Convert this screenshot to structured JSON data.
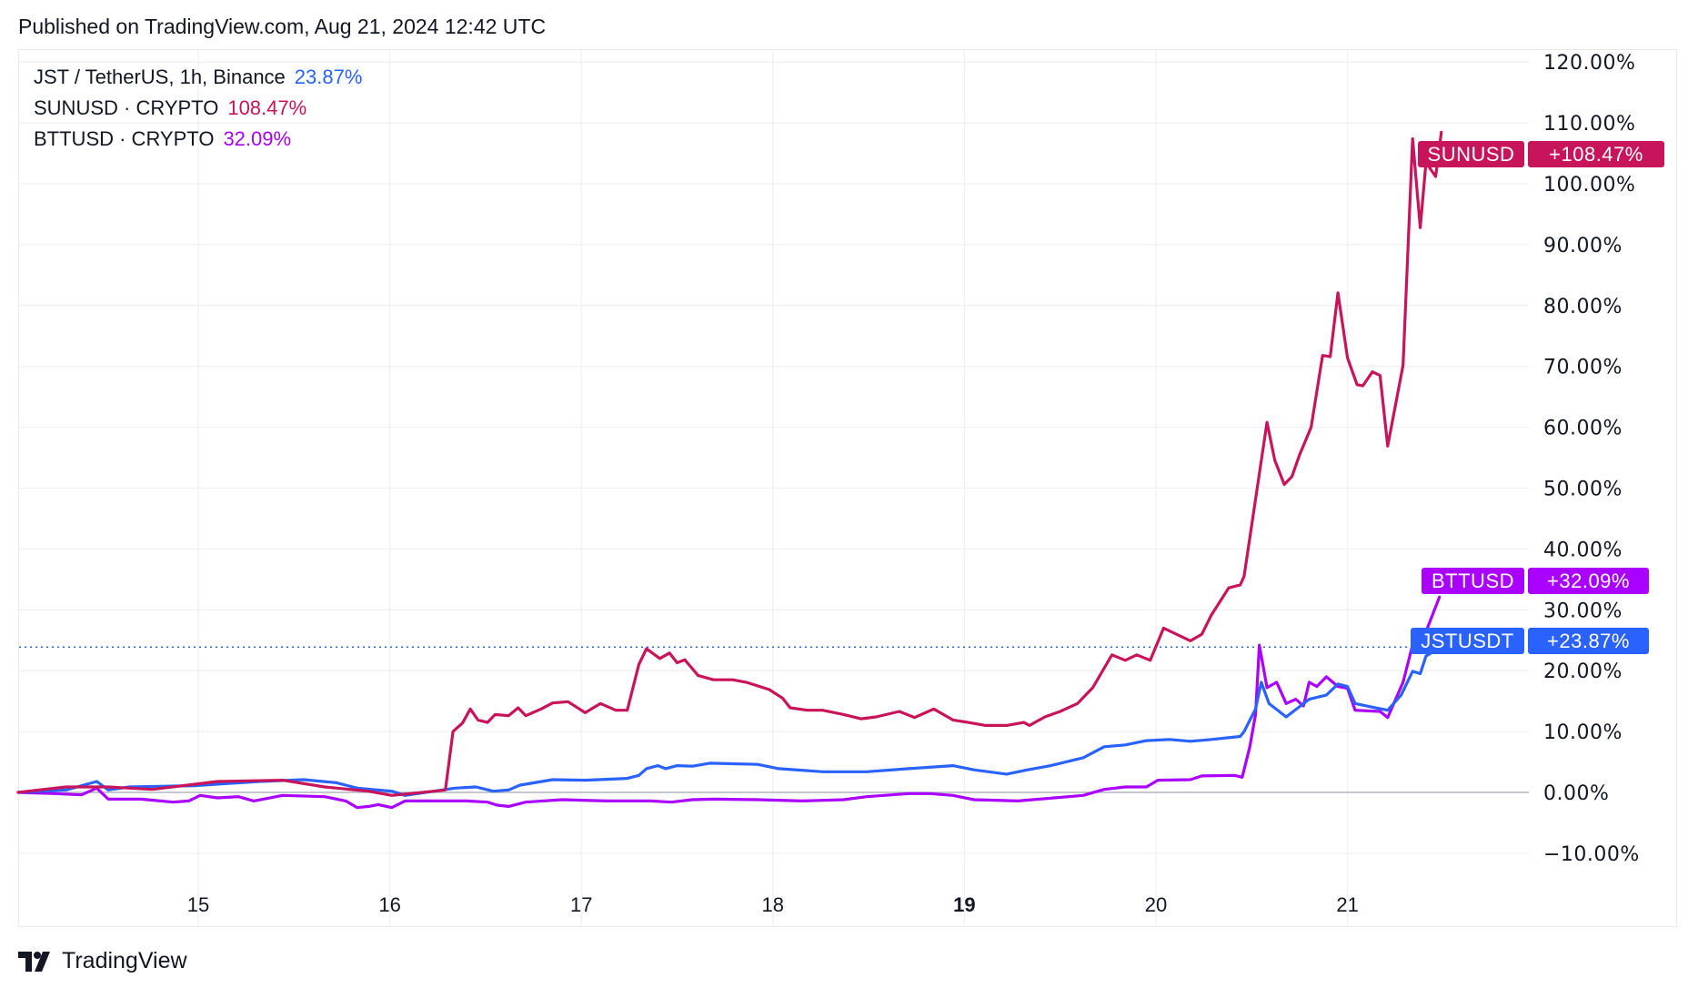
{
  "header": {
    "published": "Published on TradingView.com, Aug 21, 2024 12:42 UTC"
  },
  "legend": [
    {
      "name": "JST / TetherUS, 1h, Binance",
      "value": "23.87%",
      "color": "#2962ff"
    },
    {
      "name": "SUNUSD · CRYPTO",
      "value": "108.47%",
      "color": "#c8145a"
    },
    {
      "name": "BTTUSD · CRYPTO",
      "value": "32.09%",
      "color": "#aa00ff"
    }
  ],
  "tags": [
    {
      "symbol": "SUNUSD",
      "value": "+108.47%",
      "color": "#c8145a"
    },
    {
      "symbol": "BTTUSD",
      "value": "+32.09%",
      "color": "#aa00ff"
    },
    {
      "symbol": "JSTUSDT",
      "value": "+23.87%",
      "color": "#2962ff"
    }
  ],
  "footer": {
    "brand": "TradingView"
  },
  "chart_data": {
    "type": "line",
    "xlabel": "",
    "ylabel": "",
    "x_unit": "day of August 2024",
    "xlim": [
      14.06,
      21.95
    ],
    "ylim": [
      -15,
      122
    ],
    "x_ticks": [
      {
        "v": 15,
        "label": "15"
      },
      {
        "v": 16,
        "label": "16"
      },
      {
        "v": 17,
        "label": "17"
      },
      {
        "v": 18,
        "label": "18"
      },
      {
        "v": 19,
        "label": "19",
        "bold": true
      },
      {
        "v": 20,
        "label": "20"
      },
      {
        "v": 21,
        "label": "21"
      }
    ],
    "y_ticks": [
      {
        "v": 120,
        "label": "120.00%"
      },
      {
        "v": 110,
        "label": "110.00%"
      },
      {
        "v": 100,
        "label": "100.00%"
      },
      {
        "v": 90,
        "label": "90.00%"
      },
      {
        "v": 80,
        "label": "80.00%"
      },
      {
        "v": 70,
        "label": "70.00%"
      },
      {
        "v": 60,
        "label": "60.00%"
      },
      {
        "v": 50,
        "label": "50.00%"
      },
      {
        "v": 40,
        "label": "40.00%"
      },
      {
        "v": 30,
        "label": "30.00%"
      },
      {
        "v": 20,
        "label": "20.00%"
      },
      {
        "v": 10,
        "label": "10.00%"
      },
      {
        "v": 0,
        "label": "0.00%"
      },
      {
        "v": -10,
        "label": "−10.00%"
      }
    ],
    "grid": true,
    "reference_line": {
      "value": 23.87,
      "color": "#2962ff",
      "style": "dotted"
    },
    "zero_line_color": "#b2b5be",
    "series": [
      {
        "name": "SUNUSD",
        "color": "#c8145a",
        "points": [
          [
            14.06,
            0
          ],
          [
            14.31,
            0.9
          ],
          [
            14.53,
            0.9
          ],
          [
            14.76,
            0.5
          ],
          [
            15.1,
            1.8
          ],
          [
            15.44,
            2
          ],
          [
            15.66,
            0.9
          ],
          [
            15.89,
            0.2
          ],
          [
            16.01,
            -0.5
          ],
          [
            16.23,
            0.2
          ],
          [
            16.29,
            0.4
          ],
          [
            16.33,
            10
          ],
          [
            16.38,
            11.4
          ],
          [
            16.42,
            13.7
          ],
          [
            16.46,
            11.9
          ],
          [
            16.51,
            11.5
          ],
          [
            16.55,
            12.8
          ],
          [
            16.62,
            12.6
          ],
          [
            16.67,
            13.9
          ],
          [
            16.71,
            12.6
          ],
          [
            16.79,
            13.7
          ],
          [
            16.85,
            14.7
          ],
          [
            16.93,
            14.9
          ],
          [
            17.02,
            13.1
          ],
          [
            17.1,
            14.6
          ],
          [
            17.18,
            13.5
          ],
          [
            17.24,
            13.5
          ],
          [
            17.3,
            21
          ],
          [
            17.34,
            23.6
          ],
          [
            17.41,
            22
          ],
          [
            17.46,
            22.9
          ],
          [
            17.5,
            21.3
          ],
          [
            17.54,
            21.8
          ],
          [
            17.61,
            19.2
          ],
          [
            17.69,
            18.5
          ],
          [
            17.79,
            18.5
          ],
          [
            17.86,
            18.1
          ],
          [
            17.98,
            16.9
          ],
          [
            18.05,
            15.5
          ],
          [
            18.09,
            13.9
          ],
          [
            18.18,
            13.5
          ],
          [
            18.26,
            13.5
          ],
          [
            18.37,
            12.8
          ],
          [
            18.46,
            12.1
          ],
          [
            18.54,
            12.4
          ],
          [
            18.66,
            13.3
          ],
          [
            18.74,
            12.3
          ],
          [
            18.84,
            13.7
          ],
          [
            18.94,
            11.9
          ],
          [
            19.02,
            11.5
          ],
          [
            19.11,
            11
          ],
          [
            19.22,
            11
          ],
          [
            19.31,
            11.5
          ],
          [
            19.34,
            11
          ],
          [
            19.42,
            12.4
          ],
          [
            19.5,
            13.3
          ],
          [
            19.59,
            14.6
          ],
          [
            19.67,
            17.2
          ],
          [
            19.77,
            22.6
          ],
          [
            19.84,
            21.7
          ],
          [
            19.9,
            22.6
          ],
          [
            19.97,
            21.7
          ],
          [
            20.04,
            27
          ],
          [
            20.12,
            25.8
          ],
          [
            20.18,
            24.9
          ],
          [
            20.24,
            26
          ],
          [
            20.29,
            29.2
          ],
          [
            20.38,
            33.6
          ],
          [
            20.44,
            34.1
          ],
          [
            20.46,
            35.5
          ],
          [
            20.58,
            60.8
          ],
          [
            20.62,
            54.6
          ],
          [
            20.67,
            50.6
          ],
          [
            20.71,
            51.9
          ],
          [
            20.75,
            55.5
          ],
          [
            20.81,
            60
          ],
          [
            20.87,
            71.8
          ],
          [
            20.91,
            71.6
          ],
          [
            20.95,
            82.1
          ],
          [
            21.0,
            71.4
          ],
          [
            21.05,
            67
          ],
          [
            21.08,
            66.8
          ],
          [
            21.13,
            69.1
          ],
          [
            21.17,
            68.5
          ],
          [
            21.21,
            56.9
          ],
          [
            21.29,
            70.2
          ],
          [
            21.34,
            107.4
          ],
          [
            21.38,
            92.8
          ],
          [
            21.41,
            103.5
          ],
          [
            21.46,
            101.2
          ],
          [
            21.49,
            108.47
          ]
        ]
      },
      {
        "name": "JSTUSDT",
        "color": "#2962ff",
        "points": [
          [
            14.06,
            0
          ],
          [
            14.31,
            0.4
          ],
          [
            14.47,
            1.8
          ],
          [
            14.53,
            0.4
          ],
          [
            14.64,
            0.9
          ],
          [
            14.98,
            1.1
          ],
          [
            15.32,
            1.8
          ],
          [
            15.55,
            2.1
          ],
          [
            15.72,
            1.6
          ],
          [
            15.83,
            0.7
          ],
          [
            16.01,
            0.2
          ],
          [
            16.08,
            -0.5
          ],
          [
            16.23,
            0.2
          ],
          [
            16.34,
            0.7
          ],
          [
            16.45,
            0.9
          ],
          [
            16.54,
            0.2
          ],
          [
            16.62,
            0.4
          ],
          [
            16.68,
            1.2
          ],
          [
            16.85,
            2.1
          ],
          [
            17.02,
            2
          ],
          [
            17.24,
            2.3
          ],
          [
            17.3,
            2.8
          ],
          [
            17.34,
            3.9
          ],
          [
            17.4,
            4.4
          ],
          [
            17.44,
            3.9
          ],
          [
            17.5,
            4.4
          ],
          [
            17.58,
            4.3
          ],
          [
            17.67,
            4.8
          ],
          [
            17.92,
            4.6
          ],
          [
            18.03,
            3.9
          ],
          [
            18.26,
            3.4
          ],
          [
            18.49,
            3.4
          ],
          [
            18.71,
            3.9
          ],
          [
            18.94,
            4.4
          ],
          [
            19.05,
            3.7
          ],
          [
            19.22,
            3
          ],
          [
            19.33,
            3.7
          ],
          [
            19.45,
            4.4
          ],
          [
            19.62,
            5.7
          ],
          [
            19.73,
            7.5
          ],
          [
            19.84,
            7.8
          ],
          [
            19.95,
            8.5
          ],
          [
            20.07,
            8.7
          ],
          [
            20.18,
            8.4
          ],
          [
            20.29,
            8.7
          ],
          [
            20.44,
            9.2
          ],
          [
            20.46,
            10
          ],
          [
            20.52,
            13.7
          ],
          [
            20.55,
            18.1
          ],
          [
            20.59,
            14.6
          ],
          [
            20.68,
            12.4
          ],
          [
            20.8,
            15.3
          ],
          [
            20.89,
            16
          ],
          [
            20.95,
            17.8
          ],
          [
            21.0,
            17.4
          ],
          [
            21.04,
            14.6
          ],
          [
            21.13,
            14
          ],
          [
            21.21,
            13.5
          ],
          [
            21.28,
            16
          ],
          [
            21.34,
            19.9
          ],
          [
            21.38,
            19.5
          ],
          [
            21.41,
            22.4
          ],
          [
            21.49,
            23.87
          ]
        ]
      },
      {
        "name": "BTTUSD",
        "color": "#aa00ff",
        "points": [
          [
            14.06,
            0
          ],
          [
            14.25,
            -0.2
          ],
          [
            14.39,
            -0.4
          ],
          [
            14.47,
            0.7
          ],
          [
            14.53,
            -1.1
          ],
          [
            14.7,
            -1.1
          ],
          [
            14.87,
            -1.6
          ],
          [
            14.95,
            -1.4
          ],
          [
            15.01,
            -0.5
          ],
          [
            15.1,
            -0.9
          ],
          [
            15.21,
            -0.7
          ],
          [
            15.29,
            -1.4
          ],
          [
            15.44,
            -0.5
          ],
          [
            15.66,
            -0.7
          ],
          [
            15.77,
            -1.4
          ],
          [
            15.83,
            -2.5
          ],
          [
            15.89,
            -2.3
          ],
          [
            15.94,
            -2
          ],
          [
            16.01,
            -2.5
          ],
          [
            16.08,
            -1.4
          ],
          [
            16.23,
            -1.4
          ],
          [
            16.4,
            -1.4
          ],
          [
            16.51,
            -1.6
          ],
          [
            16.56,
            -2.1
          ],
          [
            16.62,
            -2.3
          ],
          [
            16.71,
            -1.6
          ],
          [
            16.9,
            -1.2
          ],
          [
            17.13,
            -1.4
          ],
          [
            17.36,
            -1.4
          ],
          [
            17.47,
            -1.6
          ],
          [
            17.58,
            -1.2
          ],
          [
            17.69,
            -1.1
          ],
          [
            17.92,
            -1.2
          ],
          [
            18.15,
            -1.4
          ],
          [
            18.37,
            -1.2
          ],
          [
            18.49,
            -0.7
          ],
          [
            18.71,
            -0.2
          ],
          [
            18.82,
            -0.2
          ],
          [
            18.94,
            -0.5
          ],
          [
            19.05,
            -1.2
          ],
          [
            19.28,
            -1.4
          ],
          [
            19.39,
            -1.1
          ],
          [
            19.62,
            -0.5
          ],
          [
            19.73,
            0.5
          ],
          [
            19.84,
            0.9
          ],
          [
            19.95,
            0.9
          ],
          [
            20.01,
            2
          ],
          [
            20.18,
            2.1
          ],
          [
            20.24,
            2.7
          ],
          [
            20.41,
            2.8
          ],
          [
            20.45,
            2.5
          ],
          [
            20.49,
            7.5
          ],
          [
            20.52,
            12.8
          ],
          [
            20.54,
            24.2
          ],
          [
            20.58,
            17.2
          ],
          [
            20.63,
            18.1
          ],
          [
            20.68,
            14.6
          ],
          [
            20.73,
            15.3
          ],
          [
            20.77,
            14.2
          ],
          [
            20.8,
            18.1
          ],
          [
            20.84,
            17.4
          ],
          [
            20.89,
            19
          ],
          [
            20.95,
            17.4
          ],
          [
            21.0,
            17.1
          ],
          [
            21.04,
            13.5
          ],
          [
            21.17,
            13.3
          ],
          [
            21.21,
            12.3
          ],
          [
            21.29,
            18.1
          ],
          [
            21.36,
            26.7
          ],
          [
            21.4,
            25.6
          ],
          [
            21.48,
            32.09
          ]
        ]
      }
    ]
  }
}
